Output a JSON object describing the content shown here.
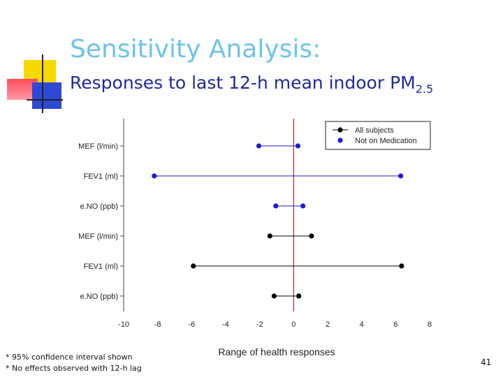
{
  "slide": {
    "title": "Sensitivity Analysis:",
    "subtitle_main": "Responses to last 12-h mean indoor PM",
    "subtitle_sub": "2.5",
    "notes": [
      "* 95% confidence interval shown",
      "* No effects observed with 12-h lag"
    ],
    "page_number": "41"
  },
  "chart_data": {
    "type": "forest",
    "xlabel": "Range of health responses",
    "xlim": [
      -10,
      8
    ],
    "xticks": [
      -10,
      -8,
      -6,
      -4,
      -2,
      0,
      2,
      4,
      6,
      8
    ],
    "reference_line": 0,
    "reference_color": "#a52a2a",
    "legend_position": "top-right",
    "series": [
      {
        "name": "All subjects",
        "color": "#000000",
        "rows": [
          {
            "label": "MEF (l/min)",
            "low": -1.4,
            "high": 1.05
          },
          {
            "label": "FEV1 (ml)",
            "low": -5.9,
            "high": 6.35
          },
          {
            "label": "e.NO (ppb)",
            "low": -1.15,
            "high": 0.3
          }
        ]
      },
      {
        "name": "Not on Medication",
        "color": "#1a1ad6",
        "rows": [
          {
            "label": "MEF (l/min)",
            "low": -2.05,
            "high": 0.25
          },
          {
            "label": "FEV1 (ml)",
            "low": -8.2,
            "high": 6.3
          },
          {
            "label": "e.NO (ppb)",
            "low": -1.05,
            "high": 0.55
          }
        ]
      }
    ]
  }
}
